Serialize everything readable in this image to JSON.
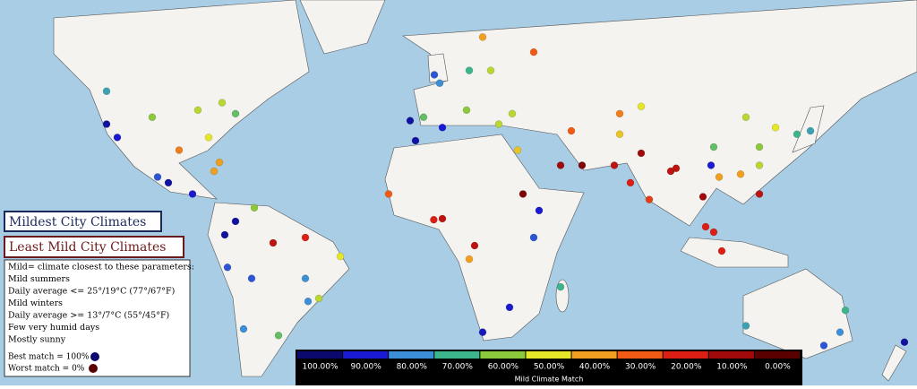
{
  "chart_data": {
    "type": "map",
    "legend": {
      "mildest": "Mildest City Climates",
      "least_mild": "Least Mild City Climates",
      "notes": [
        "Mild= climate closest to these parameters:",
        "Mild summers",
        "Daily average <= 25°/19°C (77°/67°F)",
        "Mild winters",
        "Daily average >= 13°/7°C (55°/45°F)",
        "Few very humid days",
        "Mostly sunny"
      ],
      "best": "Best match = 100%",
      "worst": "Worst match = 0%"
    },
    "colorbar_title": "Mild Climate Match",
    "colorbar": [
      {
        "value": 100,
        "label": "100.00%",
        "color": "#0a0a6e"
      },
      {
        "value": 90,
        "label": "90.00%",
        "color": "#1a1ad2"
      },
      {
        "value": 80,
        "label": "80.00%",
        "color": "#3c8fd6"
      },
      {
        "value": 70,
        "label": "70.00%",
        "color": "#3cb48c"
      },
      {
        "value": 60,
        "label": "60.00%",
        "color": "#8cc83c"
      },
      {
        "value": 50,
        "label": "50.00%",
        "color": "#e6e628"
      },
      {
        "value": 40,
        "label": "40.00%",
        "color": "#f0a01e"
      },
      {
        "value": 30,
        "label": "30.00%",
        "color": "#f05a14"
      },
      {
        "value": 20,
        "label": "20.00%",
        "color": "#dc1e14"
      },
      {
        "value": 10,
        "label": "10.00%",
        "color": "#a00a0a"
      },
      {
        "value": 0,
        "label": "0.00%",
        "color": "#5a0000"
      }
    ],
    "points": [
      [
        0,
        51,
        85
      ],
      [
        2,
        49,
        80
      ],
      [
        -4,
        40,
        65
      ],
      [
        -9,
        39,
        95
      ],
      [
        12,
        42,
        60
      ],
      [
        13,
        52,
        70
      ],
      [
        21,
        52,
        55
      ],
      [
        37,
        56,
        30
      ],
      [
        18,
        59,
        40
      ],
      [
        24,
        38,
        55
      ],
      [
        29,
        41,
        55
      ],
      [
        -7,
        33,
        95
      ],
      [
        3,
        37,
        90
      ],
      [
        31,
        30,
        45
      ],
      [
        3,
        6,
        15
      ],
      [
        -0.2,
        5.6,
        20
      ],
      [
        15,
        -4,
        15
      ],
      [
        37,
        -1,
        85
      ],
      [
        39,
        9,
        90
      ],
      [
        28,
        -26,
        90
      ],
      [
        18,
        -34,
        92
      ],
      [
        13,
        -9,
        40
      ],
      [
        -17,
        15,
        30
      ],
      [
        33,
        15,
        5
      ],
      [
        47,
        -19,
        70
      ],
      [
        47,
        25,
        10
      ],
      [
        55,
        25,
        5
      ],
      [
        51,
        36,
        30
      ],
      [
        67,
        25,
        15
      ],
      [
        77,
        29,
        10
      ],
      [
        73,
        19,
        20
      ],
      [
        88,
        23,
        15
      ],
      [
        80,
        13,
        25
      ],
      [
        90,
        24,
        15
      ],
      [
        100,
        14,
        10
      ],
      [
        106,
        21,
        40
      ],
      [
        121,
        15,
        15
      ],
      [
        107,
        -6,
        20
      ],
      [
        104,
        1,
        20
      ],
      [
        101,
        3,
        20
      ],
      [
        116,
        40,
        55
      ],
      [
        121,
        31,
        60
      ],
      [
        114,
        22,
        40
      ],
      [
        104,
        31,
        65
      ],
      [
        103,
        25,
        90
      ],
      [
        127,
        37,
        50
      ],
      [
        140,
        36,
        75
      ],
      [
        135,
        35,
        70
      ],
      [
        121,
        25,
        55
      ],
      [
        69,
        41,
        35
      ],
      [
        77,
        43,
        50
      ],
      [
        69,
        35,
        45
      ],
      [
        151,
        -34,
        80
      ],
      [
        145,
        -38,
        85
      ],
      [
        116,
        -32,
        75
      ],
      [
        153,
        -27,
        70
      ],
      [
        175,
        -37,
        95
      ],
      [
        -118,
        34,
        90
      ],
      [
        -122,
        38,
        95
      ],
      [
        -122,
        47,
        75
      ],
      [
        -105,
        40,
        60
      ],
      [
        -88,
        42,
        55
      ],
      [
        -74,
        41,
        65
      ],
      [
        -95,
        30,
        35
      ],
      [
        -80,
        26,
        40
      ],
      [
        -84,
        34,
        50
      ],
      [
        -79,
        44,
        55
      ],
      [
        -99,
        19,
        95
      ],
      [
        -103,
        21,
        85
      ],
      [
        -82,
        23,
        40
      ],
      [
        -90,
        15,
        90
      ],
      [
        -74,
        5,
        95
      ],
      [
        -67,
        10,
        60
      ],
      [
        -78,
        0,
        95
      ],
      [
        -77,
        -12,
        85
      ],
      [
        -71,
        -33,
        80
      ],
      [
        -58,
        -35,
        65
      ],
      [
        -47,
        -24,
        80
      ],
      [
        -43,
        -23,
        55
      ],
      [
        -60,
        -3,
        15
      ],
      [
        -48,
        -1,
        20
      ],
      [
        -35,
        -8,
        50
      ],
      [
        -48,
        -16,
        80
      ],
      [
        -68,
        -16,
        85
      ]
    ]
  }
}
